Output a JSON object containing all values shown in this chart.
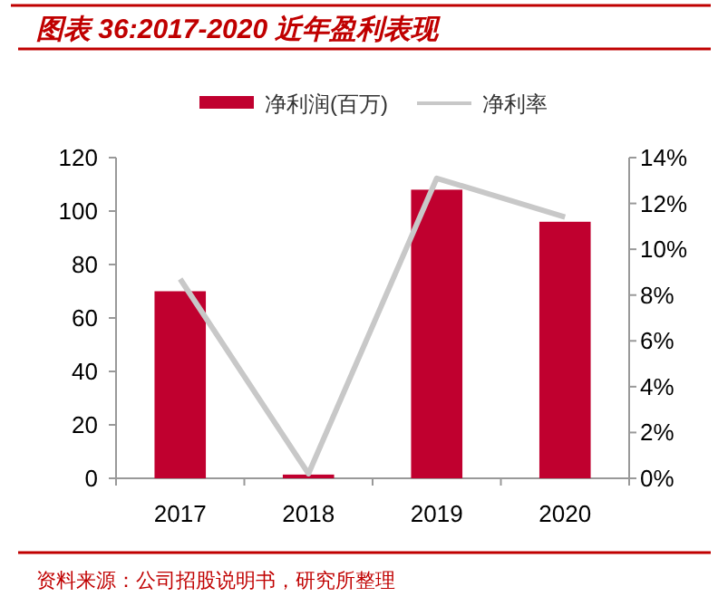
{
  "chart_data": {
    "type": "bar",
    "title": "图表 36:2017-2020 近年盈利表现",
    "annotations": [
      "资料来源：公司招股说明书，研究所整理"
    ],
    "categories": [
      "2017",
      "2018",
      "2019",
      "2020"
    ],
    "series": [
      {
        "name": "净利润(百万)",
        "color": "#c0002f",
        "values": [
          70,
          1.4,
          108,
          96
        ]
      },
      {
        "name": "净利率",
        "type": "line",
        "axis": "y2",
        "color": "#c8c8c8",
        "values": [
          8.7,
          0.2,
          13.1,
          11.4
        ]
      }
    ],
    "ylim": [
      0,
      120
    ],
    "yticks": [
      0,
      20,
      40,
      60,
      80,
      100,
      120
    ],
    "y2lim": [
      0,
      14
    ],
    "y2ticks": [
      {
        "value": 0,
        "label": "0%"
      },
      {
        "value": 2,
        "label": "2%"
      },
      {
        "value": 4,
        "label": "4%"
      },
      {
        "value": 6,
        "label": "6%"
      },
      {
        "value": 8,
        "label": "8%"
      },
      {
        "value": 10,
        "label": "10%"
      },
      {
        "value": 12,
        "label": "12%"
      },
      {
        "value": 14,
        "label": "14%"
      }
    ],
    "legend": "top",
    "grid": false
  }
}
